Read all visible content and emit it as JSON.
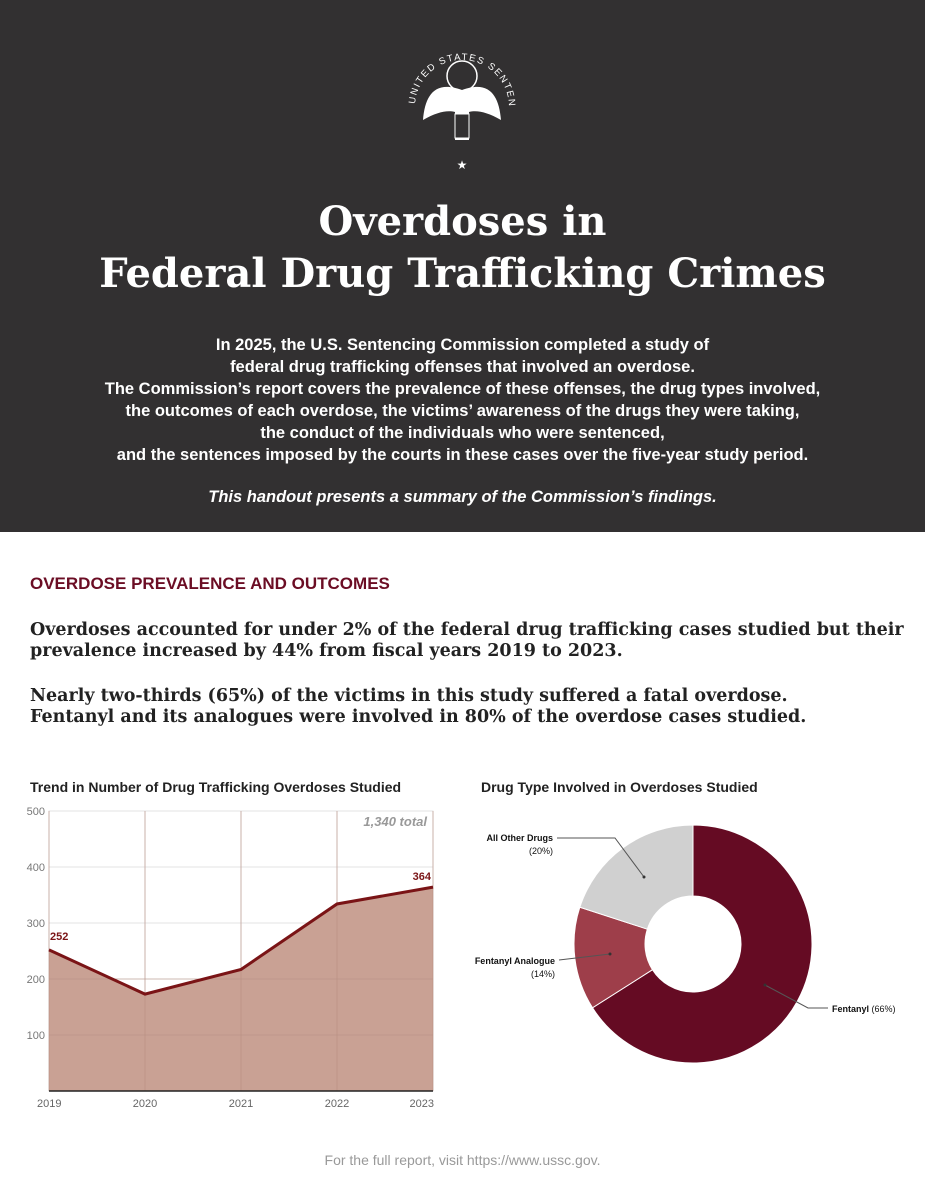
{
  "header": {
    "logo_text": "UNITED STATES SENTENCING COMMISSION",
    "title_line1": "Overdoses in",
    "title_line2": "Federal Drug Trafficking Crimes",
    "intro": [
      "In 2025, the U.S. Sentencing Commission completed a study of",
      "federal drug trafficking offenses that involved an overdose.",
      "The Commission’s report covers the prevalence of these offenses, the drug types involved,",
      "the outcomes of each overdose, the victims’ awareness of the drugs they were taking,",
      "the conduct of the individuals who were sentenced,",
      "and the sentences imposed by the courts in these cases over the five-year study period."
    ],
    "intro_italic": "This handout presents a summary of the Commission’s findings."
  },
  "section": {
    "heading": "OVERDOSE PREVALENCE AND OUTCOMES",
    "finding1": [
      "Overdoses accounted for under 2% of the federal drug trafficking cases studied but their",
      "prevalence increased by 44% from fiscal years 2019 to 2023."
    ],
    "finding2": [
      "Nearly two-thirds (65%) of the victims in this study suffered a fatal overdose.",
      "Fentanyl and its analogues were involved in 80% of the overdose cases studied."
    ]
  },
  "chart_data": [
    {
      "type": "area",
      "title": "Trend in Number of Drug Trafficking Overdoses Studied",
      "categories": [
        "2019",
        "2020",
        "2021",
        "2022",
        "2023"
      ],
      "values": [
        252,
        173,
        217,
        334,
        364
      ],
      "ylim": [
        0,
        500
      ],
      "yticks": [
        "100",
        "200",
        "300",
        "400",
        "500"
      ],
      "data_labels": {
        "first": "252",
        "last": "364"
      },
      "annotation": "1,340 total",
      "colors": {
        "line": "#7a1416",
        "fill": "#c9a194"
      },
      "grid": true
    },
    {
      "type": "pie",
      "title": "Drug Type Involved in Overdoses Studied",
      "slices": [
        {
          "label": "Fentanyl (66%)",
          "value": 66,
          "color": "#650b23"
        },
        {
          "label": "Fentanyl Analogue",
          "pct": "(14%)",
          "value": 14,
          "color": "#9e3e4a"
        },
        {
          "label": "All Other Drugs",
          "pct": "(20%)",
          "value": 20,
          "color": "#d0d0d0"
        }
      ]
    }
  ],
  "footer": "For the full report, visit https://www.ussc.gov."
}
